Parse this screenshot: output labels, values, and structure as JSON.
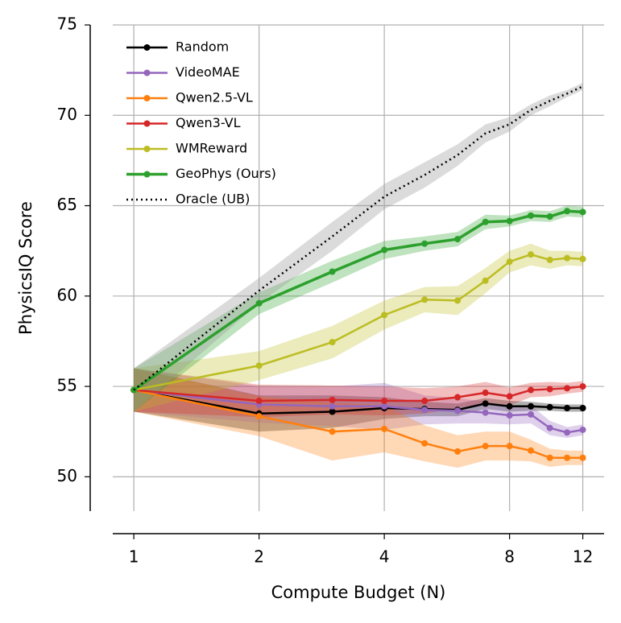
{
  "chart_data": {
    "type": "line",
    "x_label": "Compute Budget (N)",
    "y_label": "PhysicsIQ Score",
    "x": [
      1,
      2,
      3,
      4,
      5,
      6,
      7,
      8,
      9,
      10,
      11,
      12
    ],
    "x_scale": "log2",
    "xlim": [
      0.89,
      13.5
    ],
    "xticks": [
      1,
      2,
      4,
      8,
      12
    ],
    "ylim": [
      48.1,
      75
    ],
    "yticks": [
      50,
      55,
      60,
      65,
      70,
      75
    ],
    "grid": true,
    "legend": "upper left",
    "series": [
      {
        "name": "Random",
        "color": "#000000",
        "linestyle": "solid",
        "markers": true,
        "values": [
          54.8,
          53.5,
          53.6,
          53.8,
          53.75,
          53.7,
          54.05,
          53.9,
          53.9,
          53.85,
          53.8,
          53.8
        ],
        "error": [
          1.2,
          1.0,
          0.9,
          0.6,
          0.4,
          0.35,
          0.3,
          0.3,
          0.25,
          0.2,
          0.2,
          0.2
        ]
      },
      {
        "name": "VideoMAE",
        "color": "#9467bd",
        "linestyle": "solid",
        "markers": true,
        "values": [
          54.8,
          54.0,
          53.9,
          53.9,
          53.7,
          53.65,
          53.55,
          53.4,
          53.45,
          52.7,
          52.45,
          52.6
        ],
        "error": [
          1.2,
          1.0,
          1.1,
          1.3,
          0.8,
          0.7,
          0.6,
          0.5,
          0.5,
          0.4,
          0.3,
          0.3
        ]
      },
      {
        "name": "Qwen2.5-VL",
        "color": "#ff7f0e",
        "linestyle": "solid",
        "markers": true,
        "values": [
          54.8,
          53.35,
          52.5,
          52.65,
          51.85,
          51.4,
          51.7,
          51.7,
          51.45,
          51.05,
          51.05,
          51.05
        ],
        "error": [
          1.2,
          1.1,
          1.6,
          1.3,
          1.0,
          0.9,
          0.8,
          0.8,
          0.6,
          0.5,
          0.4,
          0.4
        ]
      },
      {
        "name": "Qwen3-VL",
        "color": "#d62728",
        "linestyle": "solid",
        "markers": true,
        "values": [
          54.8,
          54.2,
          54.25,
          54.2,
          54.2,
          54.4,
          54.65,
          54.45,
          54.8,
          54.85,
          54.9,
          55.0
        ],
        "error": [
          1.2,
          0.9,
          0.8,
          0.8,
          0.7,
          0.6,
          0.6,
          0.5,
          0.4,
          0.4,
          0.3,
          0.3
        ]
      },
      {
        "name": "WMReward",
        "color": "#bcbd22",
        "linestyle": "solid",
        "markers": true,
        "values": [
          54.8,
          56.15,
          57.45,
          58.95,
          59.8,
          59.75,
          60.85,
          61.9,
          62.3,
          62.0,
          62.1,
          62.05
        ],
        "error": [
          1.2,
          0.8,
          0.9,
          0.8,
          0.7,
          0.8,
          0.7,
          0.6,
          0.6,
          0.5,
          0.4,
          0.4
        ]
      },
      {
        "name": "GeoPhys (Ours)",
        "color": "#2ca02c",
        "linestyle": "solid",
        "markers": true,
        "values": [
          54.8,
          59.6,
          61.35,
          62.55,
          62.9,
          63.15,
          64.1,
          64.15,
          64.45,
          64.4,
          64.7,
          64.65
        ],
        "error": [
          1.2,
          0.6,
          0.6,
          0.5,
          0.4,
          0.4,
          0.4,
          0.3,
          0.3,
          0.3,
          0.3,
          0.3
        ]
      },
      {
        "name": "Oracle (UB)",
        "color": "#000000",
        "linestyle": "dotted",
        "markers": false,
        "values": [
          54.8,
          60.3,
          63.3,
          65.5,
          66.7,
          67.8,
          69.0,
          69.5,
          70.3,
          70.8,
          71.2,
          71.6
        ],
        "error": [
          1.2,
          0.7,
          0.8,
          0.7,
          0.7,
          0.6,
          0.5,
          0.4,
          0.3,
          0.3,
          0.2,
          0.2
        ]
      }
    ]
  }
}
